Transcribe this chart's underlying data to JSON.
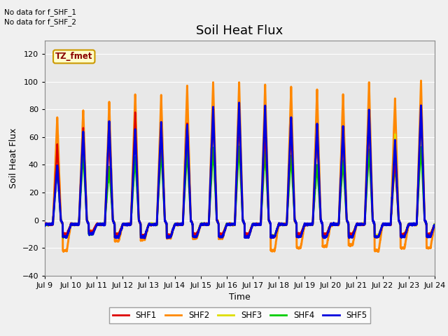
{
  "title": "Soil Heat Flux",
  "ylabel": "Soil Heat Flux",
  "xlabel": "Time",
  "ylim": [
    -40,
    130
  ],
  "yticks": [
    -40,
    -20,
    0,
    20,
    40,
    60,
    80,
    100,
    120
  ],
  "x_start_day": 9,
  "x_end_day": 24,
  "x_tick_days": [
    9,
    10,
    11,
    12,
    13,
    14,
    15,
    16,
    17,
    18,
    19,
    20,
    21,
    22,
    23,
    24
  ],
  "series_colors": {
    "SHF1": "#dd0000",
    "SHF2": "#ff8800",
    "SHF3": "#dddd00",
    "SHF4": "#00cc00",
    "SHF5": "#0000dd"
  },
  "series_labels": [
    "SHF1",
    "SHF2",
    "SHF3",
    "SHF4",
    "SHF5"
  ],
  "no_data_text_1": "No data for f_SHF_1",
  "no_data_text_2": "No data for f_SHF_2",
  "legend_label": "TZ_fmet",
  "legend_box_color": "#ffffcc",
  "legend_box_border": "#cc9900",
  "plot_bg_color": "#e8e8e8",
  "fig_bg_color": "#f0f0f0",
  "grid_color": "#ffffff",
  "title_fontsize": 13,
  "label_fontsize": 9,
  "tick_fontsize": 8,
  "linewidth": 1.8,
  "points_per_day": 144,
  "num_days": 15,
  "day_peaks_shf2": [
    75,
    80,
    85,
    91,
    90,
    97,
    100,
    100,
    97,
    96,
    94,
    91,
    100,
    88,
    100
  ],
  "day_peaks_shf3": [
    55,
    65,
    66,
    75,
    63,
    65,
    73,
    62,
    62,
    62,
    60,
    58,
    70,
    62,
    65
  ],
  "day_peaks_shf1": [
    55,
    67,
    60,
    78,
    67,
    70,
    76,
    75,
    67,
    66,
    65,
    64,
    73,
    45,
    80
  ],
  "day_peaks_shf5": [
    40,
    65,
    72,
    65,
    70,
    70,
    82,
    85,
    82,
    75,
    70,
    68,
    80,
    58,
    83
  ],
  "day_peaks_shf4": [
    38,
    48,
    38,
    45,
    50,
    50,
    52,
    54,
    50,
    47,
    40,
    43,
    50,
    42,
    53
  ],
  "day_troughs_shf2": [
    -22,
    -8,
    -15,
    -14,
    -13,
    -13,
    -13,
    -12,
    -22,
    -20,
    -19,
    -18,
    -22,
    -20,
    -20
  ],
  "day_troughs_shf1": [
    -10,
    -8,
    -10,
    -11,
    -11,
    -10,
    -10,
    -10,
    -12,
    -10,
    -10,
    -10,
    -12,
    -10,
    -10
  ],
  "day_troughs_shf3": [
    -11,
    -9,
    -10,
    -11,
    -11,
    -10,
    -10,
    -10,
    -11,
    -10,
    -10,
    -10,
    -11,
    -10,
    -10
  ],
  "day_troughs_shf4": [
    -12,
    -10,
    -11,
    -12,
    -12,
    -11,
    -11,
    -11,
    -12,
    -11,
    -11,
    -11,
    -12,
    -11,
    -11
  ],
  "day_troughs_shf5": [
    -12,
    -10,
    -12,
    -12,
    -12,
    -12,
    -12,
    -12,
    -12,
    -12,
    -12,
    -12,
    -12,
    -12,
    -12
  ]
}
